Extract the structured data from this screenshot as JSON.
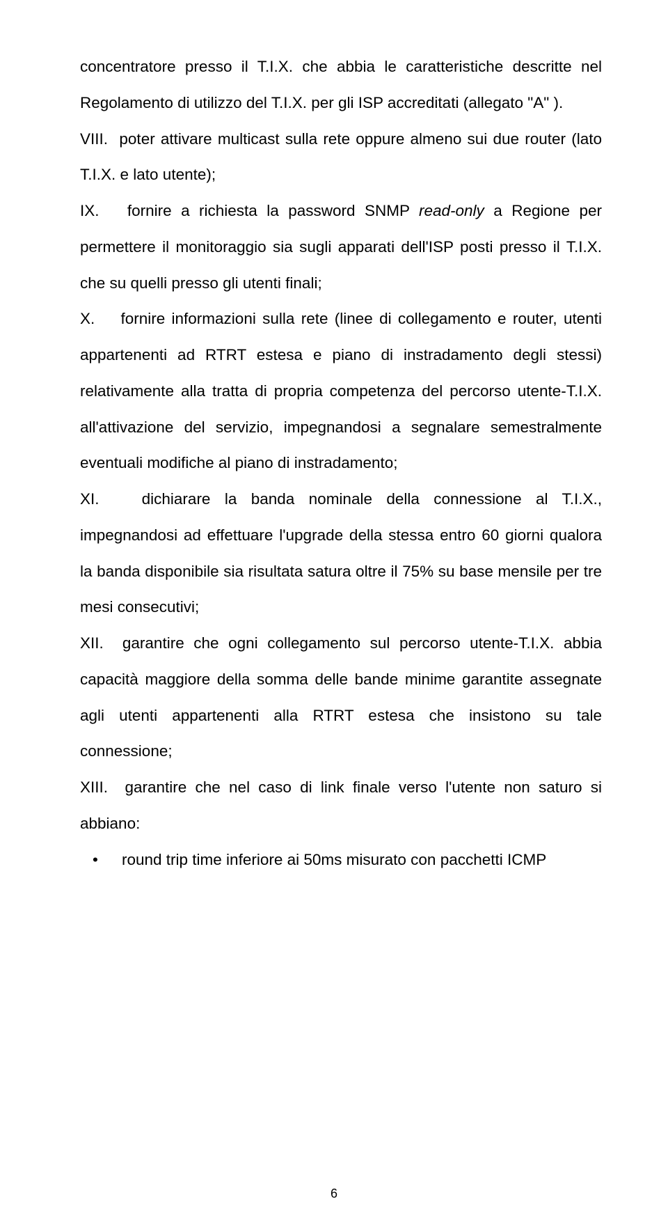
{
  "doc": {
    "p1": "concentratore presso il T.I.X. che abbia le caratteristiche descritte nel Regolamento di utilizzo del T.I.X. per gli ISP accreditati (allegato \"A\" ).",
    "p2": "VIII.  poter attivare multicast sulla rete oppure almeno sui due router (lato T.I.X. e lato utente);",
    "p3a": "IX.   fornire a richiesta la password SNMP ",
    "p3_italic": "read-only",
    "p3b": " a Regione per permettere il monitoraggio sia sugli apparati dell'ISP posti presso il T.I.X. che su quelli presso gli utenti finali;",
    "p4": "X.    fornire informazioni sulla rete (linee di collegamento e router, utenti appartenenti ad RTRT estesa e piano di instradamento degli stessi) relativamente alla tratta di propria competenza del percorso utente-T.I.X. all'attivazione del servizio, impegnandosi a segnalare semestralmente eventuali modifiche al piano di instradamento;",
    "p5": "XI.   dichiarare la banda nominale della connessione al T.I.X., impegnandosi ad effettuare l'upgrade della stessa entro 60 giorni qualora la banda disponibile sia risultata satura oltre il 75% su base mensile per tre mesi consecutivi;",
    "p6": "XII.  garantire che ogni collegamento sul percorso utente-T.I.X. abbia capacità maggiore della somma delle bande minime garantite assegnate agli utenti appartenenti alla RTRT estesa che insistono su tale connessione;",
    "p7": "XIII.  garantire che nel caso di link finale verso l'utente non saturo si abbiano:",
    "bullet1": "round trip time inferiore ai 50ms misurato con pacchetti ICMP",
    "pagenum": "6"
  }
}
